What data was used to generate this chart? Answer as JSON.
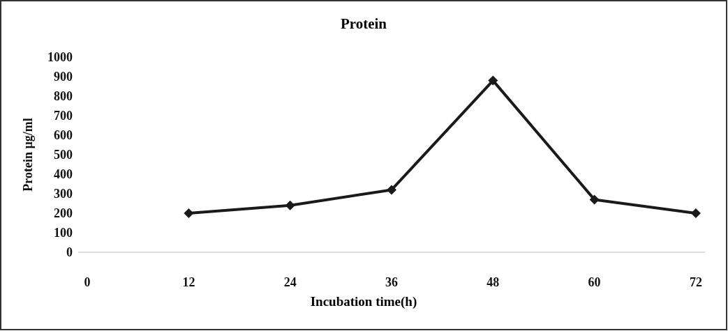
{
  "chart_data": {
    "type": "line",
    "title": "Protein",
    "xlabel": "Incubation time(h)",
    "ylabel": "Protein  µg/ml",
    "categories": [
      "0",
      "12",
      "24",
      "36",
      "48",
      "60",
      "72"
    ],
    "series": [
      {
        "color": "#1a1a1a",
        "values": [
          null,
          200,
          240,
          320,
          880,
          270,
          200
        ]
      }
    ],
    "ylim": [
      0,
      1000
    ],
    "yticks": [
      0,
      100,
      200,
      300,
      400,
      500,
      600,
      700,
      800,
      900,
      1000
    ],
    "grid": false,
    "legend": false,
    "marker": "diamond",
    "line_style": "solid"
  }
}
